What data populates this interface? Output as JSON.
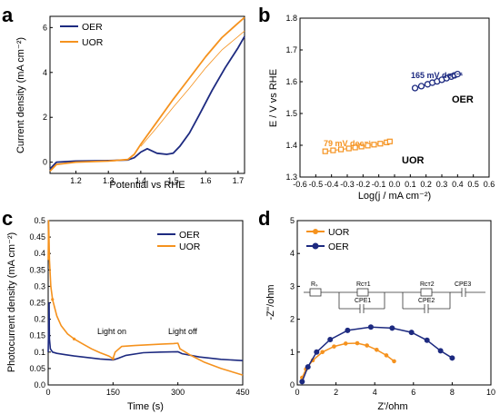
{
  "colors": {
    "oer": "#1d2a80",
    "uor": "#f5921e",
    "axis": "#000000"
  },
  "chart_data": [
    {
      "panel": "a",
      "type": "line",
      "xlabel": "Potential vs RHE",
      "ylabel": "Current density (mA cm⁻²)",
      "xlim": [
        1.12,
        1.72
      ],
      "ylim": [
        -0.5,
        6.5
      ],
      "xticks": [
        1.2,
        1.3,
        1.4,
        1.5,
        1.6,
        1.7
      ],
      "yticks": [
        0,
        2,
        4,
        6
      ],
      "legend": [
        "OER",
        "UOR"
      ],
      "series": [
        {
          "name": "OER",
          "color": "oer",
          "x": [
            1.12,
            1.14,
            1.2,
            1.3,
            1.36,
            1.38,
            1.4,
            1.42,
            1.45,
            1.48,
            1.5,
            1.52,
            1.55,
            1.58,
            1.62,
            1.66,
            1.7,
            1.72
          ],
          "y": [
            -0.3,
            0.0,
            0.05,
            0.07,
            0.1,
            0.2,
            0.45,
            0.6,
            0.4,
            0.35,
            0.4,
            0.7,
            1.3,
            2.1,
            3.2,
            4.2,
            5.1,
            5.6
          ]
        },
        {
          "name": "UOR",
          "color": "uor",
          "x": [
            1.12,
            1.14,
            1.2,
            1.3,
            1.36,
            1.38,
            1.4,
            1.45,
            1.5,
            1.55,
            1.6,
            1.65,
            1.7,
            1.72
          ],
          "y": [
            -0.4,
            -0.1,
            0.0,
            0.05,
            0.12,
            0.35,
            0.8,
            1.8,
            2.8,
            3.75,
            4.7,
            5.55,
            6.2,
            6.45
          ]
        },
        {
          "name": "",
          "color": "uor",
          "thin": true,
          "x": [
            1.4,
            1.45,
            1.5,
            1.55,
            1.6,
            1.65,
            1.7,
            1.72
          ],
          "y": [
            0.7,
            1.55,
            2.45,
            3.3,
            4.2,
            5.0,
            5.6,
            5.85
          ]
        }
      ]
    },
    {
      "panel": "b",
      "type": "scatter",
      "xlabel": "Log(j / mA cm⁻²)",
      "ylabel": "E / V vs RHE",
      "xlim": [
        -0.6,
        0.6
      ],
      "ylim": [
        1.3,
        1.8
      ],
      "xticks": [
        -0.6,
        -0.5,
        -0.4,
        -0.3,
        -0.2,
        -0.1,
        0.0,
        0.1,
        0.2,
        0.3,
        0.4,
        0.5,
        0.6
      ],
      "yticks": [
        1.3,
        1.4,
        1.5,
        1.6,
        1.7,
        1.8
      ],
      "annotations": {
        "uor_slope": "79 mV dec⁻¹",
        "oer_slope": "165 mV dec⁻¹",
        "uor_label": "UOR",
        "oer_label": "OER"
      },
      "series": [
        {
          "name": "UOR",
          "color": "uor",
          "marker": "square",
          "x": [
            -0.44,
            -0.39,
            -0.34,
            -0.29,
            -0.25,
            -0.21,
            -0.17,
            -0.13,
            -0.09,
            -0.05,
            -0.03
          ],
          "y": [
            1.381,
            1.384,
            1.387,
            1.39,
            1.393,
            1.396,
            1.399,
            1.402,
            1.405,
            1.409,
            1.412
          ]
        },
        {
          "name": "OER",
          "color": "oer",
          "marker": "circle",
          "x": [
            0.13,
            0.17,
            0.21,
            0.24,
            0.27,
            0.3,
            0.33,
            0.36,
            0.38,
            0.4
          ],
          "y": [
            1.58,
            1.586,
            1.592,
            1.597,
            1.601,
            1.606,
            1.611,
            1.616,
            1.62,
            1.624
          ]
        }
      ]
    },
    {
      "panel": "c",
      "type": "line",
      "xlabel": "Time (s)",
      "ylabel": "Photocurrent density (mA cm⁻²)",
      "xlim": [
        0,
        450
      ],
      "ylim": [
        0,
        0.5
      ],
      "xticks": [
        0,
        150,
        300,
        450
      ],
      "yticks": [
        0.0,
        0.05,
        0.1,
        0.15,
        0.2,
        0.25,
        0.3,
        0.35,
        0.4,
        0.45,
        0.5
      ],
      "legend": [
        "OER",
        "UOR"
      ],
      "annotations": {
        "light_on": "Light on",
        "light_off": "Light off"
      },
      "series": [
        {
          "name": "OER",
          "color": "oer",
          "x": [
            0,
            2,
            3,
            5,
            10,
            20,
            40,
            60,
            80,
            100,
            120,
            140,
            150,
            160,
            180,
            220,
            260,
            300,
            310,
            350,
            400,
            450
          ],
          "y": [
            0.1,
            0.25,
            0.14,
            0.11,
            0.1,
            0.096,
            0.092,
            0.088,
            0.085,
            0.082,
            0.079,
            0.077,
            0.076,
            0.08,
            0.09,
            0.098,
            0.1,
            0.101,
            0.095,
            0.085,
            0.078,
            0.074
          ]
        },
        {
          "name": "UOR",
          "color": "uor",
          "x": [
            0,
            1,
            3,
            6,
            10,
            20,
            30,
            45,
            60,
            80,
            100,
            120,
            140,
            150,
            155,
            170,
            200,
            230,
            260,
            290,
            300,
            305,
            330,
            360,
            400,
            450
          ],
          "y": [
            0.38,
            0.5,
            0.38,
            0.3,
            0.26,
            0.21,
            0.18,
            0.155,
            0.14,
            0.125,
            0.11,
            0.098,
            0.088,
            0.08,
            0.1,
            0.117,
            0.12,
            0.122,
            0.124,
            0.126,
            0.127,
            0.11,
            0.09,
            0.07,
            0.05,
            0.03
          ]
        }
      ]
    },
    {
      "panel": "d",
      "type": "scatter",
      "xlabel": "Z'/ohm",
      "ylabel": "-Z''/ohm",
      "xlim": [
        0,
        10
      ],
      "ylim": [
        0,
        5
      ],
      "xticks": [
        0,
        2,
        4,
        6,
        8,
        10
      ],
      "yticks": [
        0,
        1,
        2,
        3,
        4,
        5
      ],
      "legend": [
        "UOR",
        "OER"
      ],
      "circuit_labels": {
        "rs": "Rₛ",
        "rct1": "Rᴄᴛ1",
        "rct2": "Rᴄᴛ2",
        "cpe1": "CPE1",
        "cpe2": "CPE2",
        "cpe3": "CPE3"
      },
      "series": [
        {
          "name": "UOR",
          "color": "uor",
          "x": [
            0.25,
            0.45,
            0.8,
            1.3,
            1.9,
            2.5,
            3.1,
            3.6,
            4.1,
            4.6,
            5.0
          ],
          "y": [
            0.22,
            0.48,
            0.75,
            1.0,
            1.17,
            1.26,
            1.27,
            1.2,
            1.07,
            0.9,
            0.72
          ]
        },
        {
          "name": "OER",
          "color": "oer",
          "x": [
            0.25,
            0.55,
            1.0,
            1.7,
            2.6,
            3.8,
            4.9,
            5.9,
            6.7,
            7.4,
            8.0
          ],
          "y": [
            0.1,
            0.55,
            1.0,
            1.38,
            1.66,
            1.76,
            1.73,
            1.6,
            1.36,
            1.04,
            0.82
          ]
        }
      ]
    }
  ]
}
